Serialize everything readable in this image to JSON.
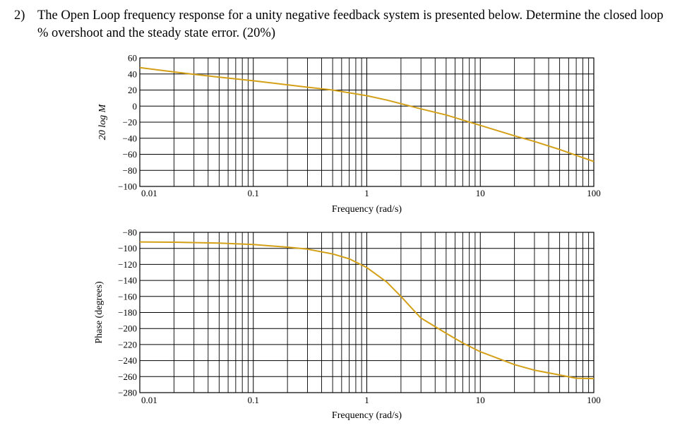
{
  "question": {
    "number": "2)",
    "text": "The Open Loop frequency response for a unity negative feedback system is presented below. Determine the closed loop % overshoot and the steady state error. (20%)"
  },
  "colors": {
    "curve": "#d4a017",
    "grid": "#000000"
  },
  "chart_data": [
    {
      "type": "line",
      "title": "",
      "xlabel": "Frequency (rad/s)",
      "ylabel": "20 log M",
      "xscale": "log",
      "xlim": [
        0.01,
        100
      ],
      "ylim": [
        -100,
        60
      ],
      "xticks": [
        "0.01",
        "0.1",
        "1",
        "10",
        "100"
      ],
      "yticks": [
        "60",
        "40",
        "20",
        "0",
        "−20",
        "−40",
        "−60",
        "−80",
        "−100"
      ],
      "grid": true,
      "series": [
        {
          "x": [
            0.01,
            0.02,
            0.03,
            0.05,
            0.1,
            0.2,
            0.3,
            0.5,
            1,
            1.5,
            2,
            3,
            5,
            10,
            20,
            30,
            50,
            100
          ],
          "y": [
            48,
            42.5,
            39.5,
            36,
            31.5,
            26.5,
            23.5,
            20,
            13,
            7.5,
            3,
            -3.5,
            -11,
            -24,
            -37,
            -44,
            -54,
            -69
          ]
        }
      ]
    },
    {
      "type": "line",
      "title": "",
      "xlabel": "Frequency (rad/s)",
      "ylabel": "Phase (degrees)",
      "xscale": "log",
      "xlim": [
        0.01,
        100
      ],
      "ylim": [
        -280,
        -80
      ],
      "xticks": [
        "0.01",
        "0.1",
        "1",
        "10",
        "100"
      ],
      "yticks": [
        "−80",
        "−100",
        "−120",
        "−140",
        "−160",
        "−180",
        "−200",
        "−220",
        "−240",
        "−260",
        "−280"
      ],
      "grid": true,
      "series": [
        {
          "x": [
            0.01,
            0.02,
            0.05,
            0.1,
            0.2,
            0.3,
            0.5,
            0.7,
            1,
            1.5,
            2,
            2.5,
            3,
            5,
            7,
            10,
            20,
            30,
            50,
            70,
            100
          ],
          "y": [
            -92,
            -92.3,
            -93.5,
            -95.2,
            -98.5,
            -101,
            -107,
            -113,
            -124,
            -142,
            -160,
            -175,
            -187,
            -206,
            -218,
            -229,
            -245,
            -252,
            -258,
            -262,
            -262.5
          ]
        }
      ]
    }
  ]
}
